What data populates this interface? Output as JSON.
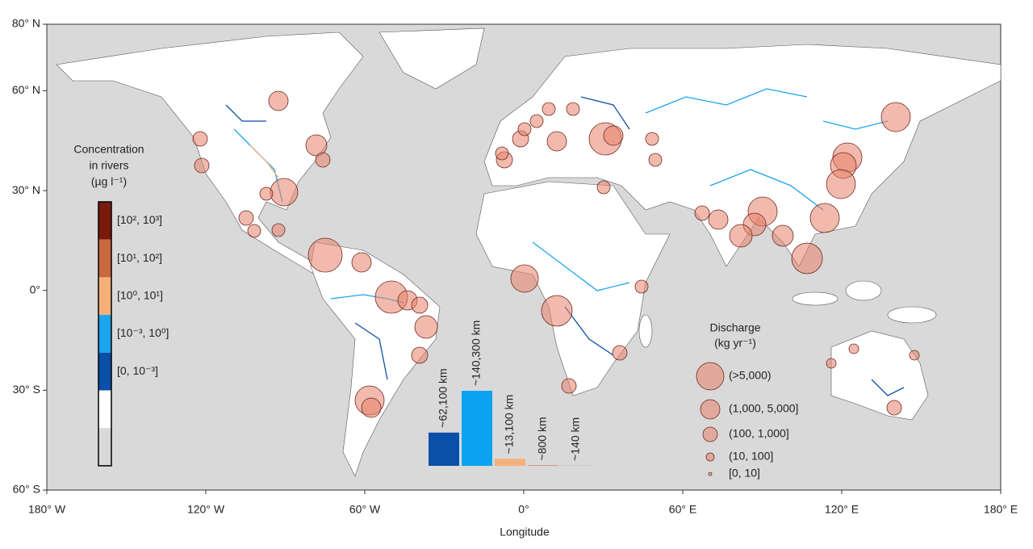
{
  "map": {
    "xlabel": "Longitude",
    "xlim": [
      -180,
      180
    ],
    "ylim": [
      -60,
      80
    ],
    "xticks": [
      {
        "value": -180,
        "label": "180° W"
      },
      {
        "value": -120,
        "label": "120° W"
      },
      {
        "value": -60,
        "label": "60° W"
      },
      {
        "value": 0,
        "label": "0°"
      },
      {
        "value": 60,
        "label": "60° E"
      },
      {
        "value": 120,
        "label": "120° E"
      },
      {
        "value": 180,
        "label": "180° E"
      }
    ],
    "yticks": [
      {
        "value": 80,
        "label": "80° N"
      },
      {
        "value": 60,
        "label": "60° N"
      },
      {
        "value": 30,
        "label": "30° N"
      },
      {
        "value": 0,
        "label": "0°"
      },
      {
        "value": -30,
        "label": "30° S"
      },
      {
        "value": -60,
        "label": "60° S"
      }
    ],
    "grid": true
  },
  "concentration_legend": {
    "title": [
      "Concentration",
      "in rivers",
      "(µg l⁻¹)"
    ],
    "classes": [
      {
        "label": "[10², 10³]",
        "color": "#7a1a0e"
      },
      {
        "label": "[10¹, 10²]",
        "color": "#c8693e"
      },
      {
        "label": "[10⁰, 10¹]",
        "color": "#f5b07a"
      },
      {
        "label": "[10⁻³, 10⁰]",
        "color": "#1ca4ef"
      },
      {
        "label": "[0, 10⁻³]",
        "color": "#0a4fa8"
      }
    ]
  },
  "discharge_legend": {
    "title": [
      "Discharge",
      "(kg yr⁻¹)"
    ],
    "classes": [
      "(>5,000)",
      "(1,000, 5,000]",
      "(100, 1,000]",
      "(10, 100]",
      "[0, 10]"
    ]
  },
  "river_length": {
    "values": [
      62100,
      140300,
      13100,
      800,
      140
    ],
    "value_labels": [
      "~62,100 km",
      "~140,300 km",
      "~13,100 km",
      "~800 km",
      "~140 km"
    ],
    "colors": [
      "#0a4fa8",
      "#0aa4f0",
      "#f5b07a",
      "#c8693e",
      "#7a1a0e"
    ]
  }
}
